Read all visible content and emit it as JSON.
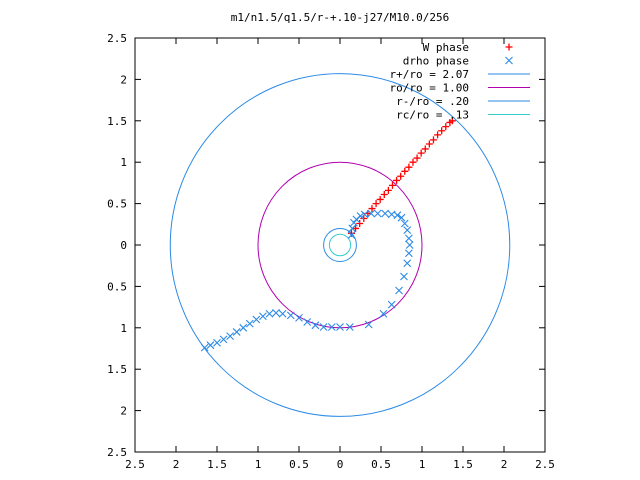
{
  "chart_data": {
    "type": "scatter",
    "title": "m1/n1.5/q1.5/r-+.10-j27/M10.0/256",
    "xlim": [
      -2.5,
      2.5
    ],
    "ylim": [
      -2.5,
      2.5
    ],
    "x_ticks": [
      -2.5,
      -2,
      -1.5,
      -1,
      -0.5,
      0,
      0.5,
      1,
      1.5,
      2,
      2.5
    ],
    "y_ticks": [
      -2.5,
      -2,
      -1.5,
      -1,
      -0.5,
      0,
      0.5,
      1,
      1.5,
      2,
      2.5
    ],
    "x_tick_labels": [
      "2.5",
      "2",
      "1.5",
      "1",
      "0.5",
      "0",
      "0.5",
      "1",
      "1.5",
      "2",
      "2.5"
    ],
    "y_tick_labels": [
      "2.5",
      "2",
      "1.5",
      "1",
      "0.5",
      "0",
      "0.5",
      "1",
      "1.5",
      "2",
      "2.5"
    ],
    "legend_position": "top-right",
    "series": [
      {
        "name": "W phase",
        "marker": "+",
        "color": "#ff0000",
        "points": [
          [
            0.14,
            0.14
          ],
          [
            0.19,
            0.2
          ],
          [
            0.24,
            0.26
          ],
          [
            0.29,
            0.32
          ],
          [
            0.34,
            0.38
          ],
          [
            0.39,
            0.44
          ],
          [
            0.44,
            0.5
          ],
          [
            0.49,
            0.55
          ],
          [
            0.54,
            0.61
          ],
          [
            0.59,
            0.66
          ],
          [
            0.64,
            0.72
          ],
          [
            0.69,
            0.78
          ],
          [
            0.74,
            0.83
          ],
          [
            0.79,
            0.89
          ],
          [
            0.84,
            0.94
          ],
          [
            0.89,
            1.0
          ],
          [
            0.94,
            1.05
          ],
          [
            0.99,
            1.11
          ],
          [
            1.04,
            1.16
          ],
          [
            1.09,
            1.22
          ],
          [
            1.14,
            1.27
          ],
          [
            1.19,
            1.33
          ],
          [
            1.24,
            1.38
          ],
          [
            1.29,
            1.43
          ],
          [
            1.34,
            1.48
          ],
          [
            1.37,
            1.5
          ]
        ]
      },
      {
        "name": "drho phase",
        "marker": "x",
        "color": "#2b8ae6",
        "points": [
          [
            0.14,
            0.12
          ],
          [
            0.15,
            0.2
          ],
          [
            0.17,
            0.27
          ],
          [
            0.2,
            0.31
          ],
          [
            0.25,
            0.35
          ],
          [
            0.3,
            0.37
          ],
          [
            0.38,
            0.38
          ],
          [
            0.46,
            0.38
          ],
          [
            0.55,
            0.38
          ],
          [
            0.63,
            0.37
          ],
          [
            0.7,
            0.36
          ],
          [
            0.75,
            0.33
          ],
          [
            0.79,
            0.26
          ],
          [
            0.82,
            0.18
          ],
          [
            0.84,
            0.08
          ],
          [
            0.85,
            0.0
          ],
          [
            0.84,
            -0.1
          ],
          [
            0.82,
            -0.22
          ],
          [
            0.78,
            -0.38
          ],
          [
            0.72,
            -0.55
          ],
          [
            0.63,
            -0.72
          ],
          [
            0.53,
            -0.83
          ],
          [
            0.35,
            -0.96
          ],
          [
            0.12,
            -0.99
          ],
          [
            0.0,
            -0.99
          ],
          [
            -0.1,
            -0.99
          ],
          [
            -0.2,
            -0.99
          ],
          [
            -0.3,
            -0.97
          ],
          [
            -0.4,
            -0.93
          ],
          [
            -0.5,
            -0.88
          ],
          [
            -0.6,
            -0.85
          ],
          [
            -0.7,
            -0.83
          ],
          [
            -0.78,
            -0.82
          ],
          [
            -0.86,
            -0.83
          ],
          [
            -0.94,
            -0.86
          ],
          [
            -1.02,
            -0.9
          ],
          [
            -1.1,
            -0.95
          ],
          [
            -1.18,
            -1.0
          ],
          [
            -1.26,
            -1.05
          ],
          [
            -1.34,
            -1.1
          ],
          [
            -1.42,
            -1.14
          ],
          [
            -1.5,
            -1.18
          ],
          [
            -1.58,
            -1.21
          ],
          [
            -1.65,
            -1.24
          ]
        ]
      },
      {
        "name": "r+/ro = 2.07",
        "shape": "circle",
        "radius": 2.07,
        "color": "#2b8ae6"
      },
      {
        "name": "ro/ro = 1.00",
        "shape": "circle",
        "radius": 1.0,
        "color": "#b000b0"
      },
      {
        "name": "r-/ro = .20",
        "shape": "circle",
        "radius": 0.2,
        "color": "#2b8ae6"
      },
      {
        "name": "rc/ro = .13",
        "shape": "circle",
        "radius": 0.13,
        "color": "#33cccc"
      }
    ]
  }
}
